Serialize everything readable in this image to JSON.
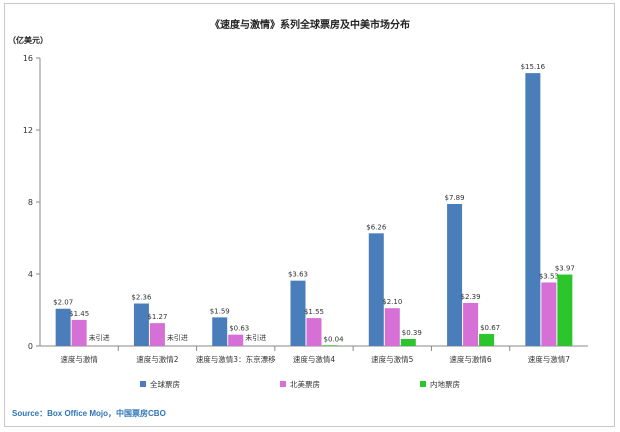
{
  "chart_data": {
    "type": "bar",
    "title": "《速度与激情》系列全球票房及中美市场分布",
    "ylabel": "（亿美元）",
    "xlabel": "",
    "ylim": [
      0,
      16
    ],
    "yticks": [
      0,
      4,
      8,
      12,
      16
    ],
    "grid": false,
    "legend_position": "bottom",
    "categories": [
      "速度与激情",
      "速度与激情2",
      "速度与激情3：东京漂移",
      "速度与激情4",
      "速度与激情5",
      "速度与激情6",
      "速度与激情7"
    ],
    "series": [
      {
        "name": "全球票房",
        "color": "#4a7ebb",
        "values": [
          2.07,
          2.36,
          1.59,
          3.63,
          6.26,
          7.89,
          15.16
        ],
        "labels": [
          "$2.07",
          "$2.36",
          "$1.59",
          "$3.63",
          "$6.26",
          "$7.89",
          "$15.16"
        ]
      },
      {
        "name": "北美票房",
        "color": "#d670d6",
        "values": [
          1.45,
          1.27,
          0.63,
          1.55,
          2.1,
          2.39,
          3.53
        ],
        "labels": [
          "$1.45",
          "$1.27",
          "$0.63",
          "$1.55",
          "$2.10",
          "$2.39",
          "$3.53"
        ]
      },
      {
        "name": "内地票房",
        "color": "#2cc52c",
        "values": [
          null,
          null,
          null,
          0.04,
          0.39,
          0.67,
          3.97
        ],
        "labels": [
          "未引进",
          "未引进",
          "未引进",
          "$0.04",
          "$0.39",
          "$0.67",
          "$3.97"
        ]
      }
    ]
  },
  "source": "Source：Box Office Mojo，中国票房CBO"
}
